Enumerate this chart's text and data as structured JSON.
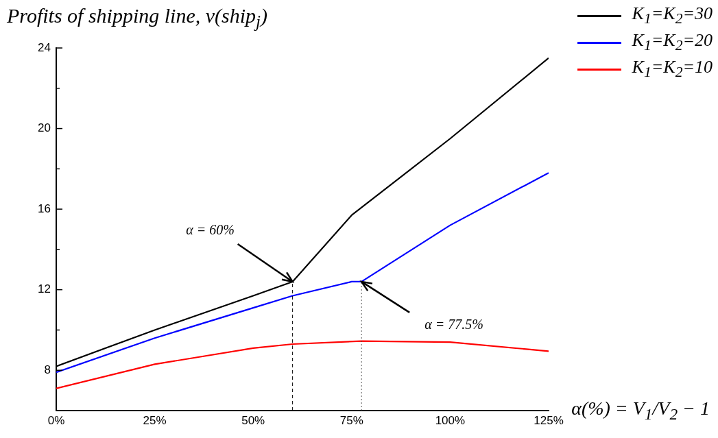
{
  "chart_data": {
    "type": "line",
    "title": "Profits of shipping line, v(ship$_{j}$)",
    "xlabel": "α(%) = V$_{1}$/V$_{2}$ − 1",
    "series": [
      {
        "name": "K$_{1}$=K$_{2}$=30",
        "color": "#000000",
        "x": [
          0,
          25,
          50,
          60,
          75,
          100,
          125
        ],
        "values": [
          8.2,
          10.0,
          11.7,
          12.4,
          15.7,
          19.5,
          23.5
        ]
      },
      {
        "name": "K$_{1}$=K$_{2}$=20",
        "color": "#0000ff",
        "x": [
          0,
          25,
          50,
          60,
          75,
          77.5,
          100,
          125
        ],
        "values": [
          7.9,
          9.6,
          11.1,
          11.7,
          12.4,
          12.4,
          15.2,
          17.8
        ]
      },
      {
        "name": "K$_{1}$=K$_{2}$=10",
        "color": "#ff0000",
        "x": [
          0,
          25,
          50,
          60,
          77.5,
          100,
          125
        ],
        "values": [
          7.1,
          8.3,
          9.1,
          9.3,
          9.45,
          9.4,
          8.95
        ]
      }
    ],
    "xlim": [
      0,
      125
    ],
    "xticks": [
      {
        "value": 0,
        "label": "0%"
      },
      {
        "value": 25,
        "label": "25%"
      },
      {
        "value": 50,
        "label": "50%"
      },
      {
        "value": 75,
        "label": "75%"
      },
      {
        "value": 100,
        "label": "100%"
      },
      {
        "value": 125,
        "label": "125%"
      }
    ],
    "ylim": [
      6,
      24
    ],
    "yticks": [
      8,
      {
        "value": 10,
        "label": null
      },
      12,
      {
        "value": 14,
        "label": null
      },
      16,
      {
        "value": 18,
        "label": null
      },
      20,
      {
        "value": 22,
        "label": null
      },
      24
    ],
    "ref_lines": [
      {
        "axis": "x",
        "value": 60,
        "color": "#000000",
        "line_style": "dashed"
      },
      {
        "axis": "x",
        "value": 77.5,
        "color": "#555555",
        "line_style": "dotted"
      }
    ],
    "annotations": [
      {
        "text": "α = 60%",
        "x": 60,
        "y": 12.4
      },
      {
        "text": "α = 77.5%",
        "x": 77.5,
        "y": 12.4
      }
    ],
    "grid": false,
    "legend": "top right",
    "marker": "none",
    "line_style": "solid"
  }
}
